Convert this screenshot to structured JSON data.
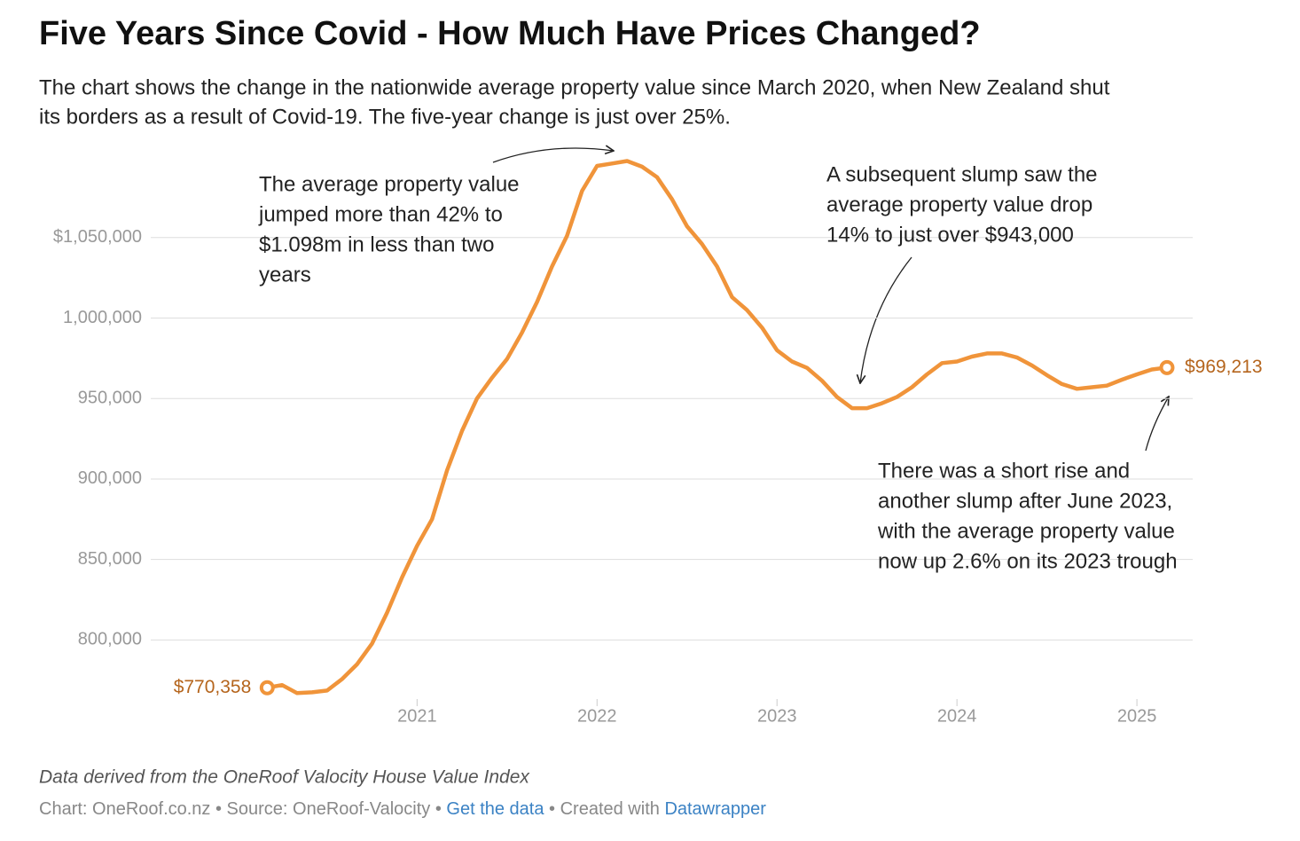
{
  "chart_data": {
    "type": "line",
    "title": "Five Years Since Covid - How Much Have Prices Changed?",
    "subtitle": [
      "The chart shows the change in the nationwide average property value since March 2020, when New Zealand shut",
      "its borders as a result of Covid-19. The five-year change is just over 25%."
    ],
    "x": [
      2020.167,
      2020.25,
      2020.333,
      2020.417,
      2020.5,
      2020.583,
      2020.667,
      2020.75,
      2020.833,
      2020.917,
      2021,
      2021.083,
      2021.167,
      2021.25,
      2021.333,
      2021.417,
      2021.5,
      2021.583,
      2021.667,
      2021.75,
      2021.833,
      2021.917,
      2022,
      2022.083,
      2022.167,
      2022.25,
      2022.333,
      2022.417,
      2022.5,
      2022.583,
      2022.667,
      2022.75,
      2022.833,
      2022.917,
      2023,
      2023.083,
      2023.167,
      2023.25,
      2023.333,
      2023.417,
      2023.5,
      2023.583,
      2023.667,
      2023.75,
      2023.833,
      2023.917,
      2024,
      2024.083,
      2024.167,
      2024.25,
      2024.333,
      2024.417,
      2024.5,
      2024.583,
      2024.667,
      2024.75,
      2024.833,
      2024.917,
      2025,
      2025.083,
      2025.167
    ],
    "series": [
      {
        "name": "Average property value",
        "color": "#f0943a",
        "values": [
          770358,
          772000,
          767000,
          767500,
          768600,
          775700,
          785000,
          797800,
          817000,
          839000,
          858500,
          875000,
          905500,
          930000,
          950000,
          963000,
          974500,
          991000,
          1010000,
          1032000,
          1051000,
          1079000,
          1094500,
          1096000,
          1097500,
          1094000,
          1087500,
          1073700,
          1057000,
          1046000,
          1032000,
          1013000,
          1005000,
          994000,
          980000,
          973000,
          969000,
          961000,
          951000,
          944000,
          944000,
          947000,
          951000,
          957000,
          965000,
          972000,
          973000,
          976000,
          978000,
          978000,
          975500,
          970500,
          964500,
          959000,
          956000,
          957000,
          958000,
          961700,
          965000,
          968000,
          969213
        ],
        "value_labels": {
          "0": "$770,358",
          "60": "$969,213"
        }
      }
    ],
    "xlim": [
      2019.52,
      2025.31
    ],
    "xticks": [
      2021,
      2022,
      2023,
      2024,
      2025
    ],
    "ylim": [
      760000,
      1100000
    ],
    "yticks": [
      {
        "value": 800000,
        "label": "800,000"
      },
      {
        "value": 850000,
        "label": "850,000"
      },
      {
        "value": 900000,
        "label": "900,000"
      },
      {
        "value": 950000,
        "label": "950,000"
      },
      {
        "value": 1000000,
        "label": "1,000,000"
      },
      {
        "value": 1050000,
        "label": "$1,050,000"
      }
    ],
    "grid": true,
    "annotations": [
      [
        "The average property value",
        "jumped more than 42% to",
        "$1.098m in less than two",
        "years"
      ],
      [
        "A subsequent slump saw the",
        "average property value drop",
        "14% to just over $943,000"
      ],
      [
        "There was a short rise and",
        "another slump after June 2023,",
        "with the average property value",
        "now up 2.6% on its 2023 trough"
      ]
    ],
    "note": "Data derived from the OneRoof Valocity House Value Index",
    "credits": [
      "Chart: OneRoof.co.nz • Source: OneRoof-Valocity • ",
      "Get the data",
      " • Created with ",
      "Datawrapper"
    ]
  }
}
